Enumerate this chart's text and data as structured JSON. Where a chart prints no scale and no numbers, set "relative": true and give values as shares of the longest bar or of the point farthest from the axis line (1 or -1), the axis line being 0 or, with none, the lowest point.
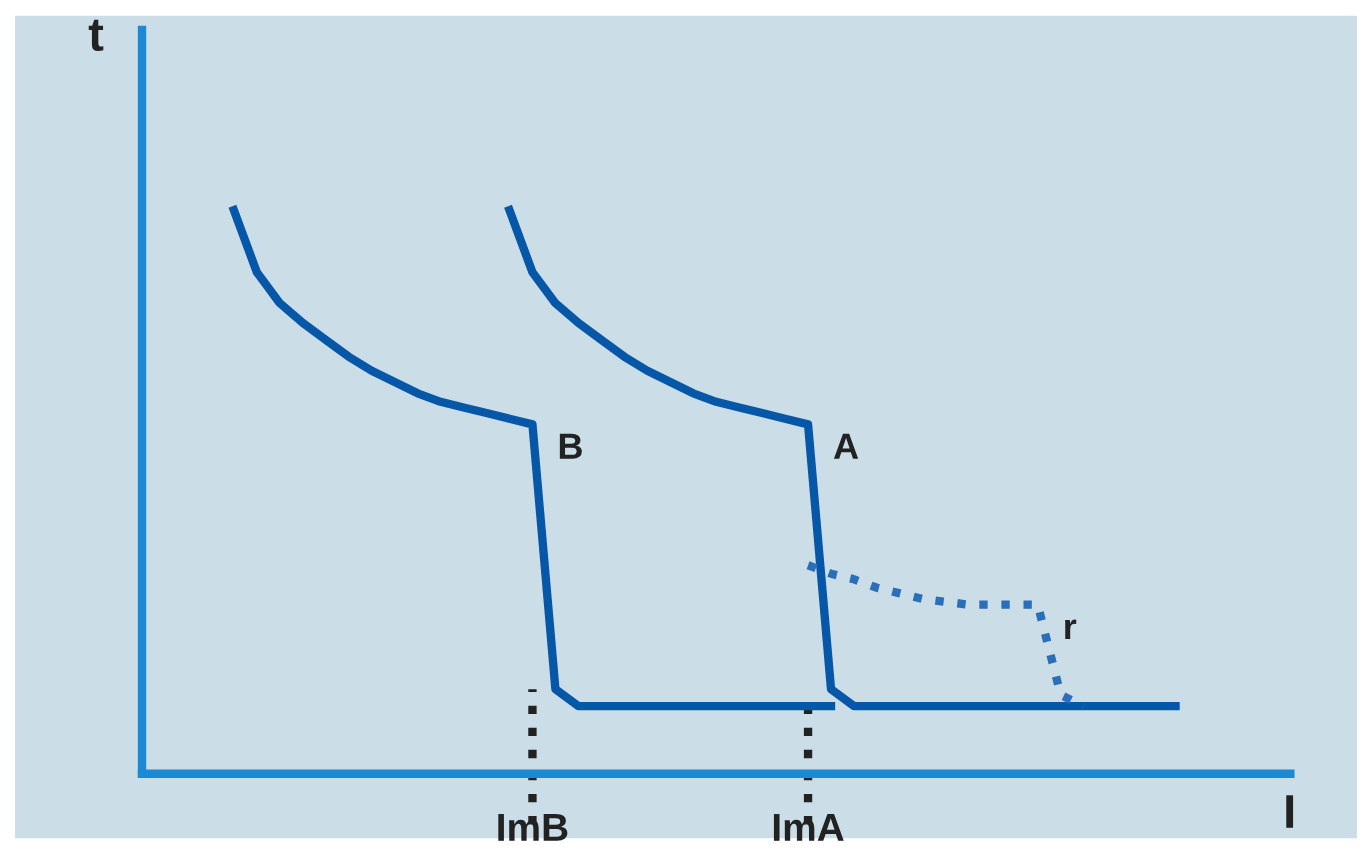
{
  "chart_data": {
    "type": "line",
    "relative": true,
    "xlabel": "I",
    "ylabel": "t",
    "tick_labels": "x",
    "categories": [
      null,
      null,
      null,
      null,
      null,
      null,
      null,
      null,
      null,
      null,
      null,
      null,
      null,
      null,
      null,
      null,
      null,
      "ImB",
      null,
      null,
      null,
      null,
      null,
      null,
      null,
      null,
      null,
      null,
      null,
      "ImA",
      null,
      null,
      null,
      null,
      null,
      null,
      null,
      null,
      null,
      null,
      null,
      null,
      null,
      null,
      null,
      null,
      null,
      null,
      null,
      null,
      null
    ],
    "series": [
      {
        "name": "B",
        "color": "#0757a8",
        "line_style": "solid",
        "values": [
          null,
          null,
          null,
          null,
          1.0,
          0.89,
          0.835,
          0.8,
          0.77,
          0.74,
          0.715,
          0.695,
          0.675,
          0.66,
          0.65,
          0.64,
          0.63,
          0.62,
          0.15,
          0.12,
          0.12,
          0.12,
          0.12,
          0.12,
          0.12,
          0.12,
          0.12,
          0.12,
          0.12,
          0.12,
          0.12,
          null,
          null,
          null,
          null,
          null,
          null,
          null,
          null,
          null,
          null,
          null,
          null,
          null,
          null,
          null,
          null,
          null,
          null,
          null,
          null
        ]
      },
      {
        "name": "A",
        "color": "#0757a8",
        "line_style": "solid",
        "values": [
          null,
          null,
          null,
          null,
          null,
          null,
          null,
          null,
          null,
          null,
          null,
          null,
          null,
          null,
          null,
          null,
          1.0,
          0.89,
          0.835,
          0.8,
          0.77,
          0.74,
          0.715,
          0.695,
          0.675,
          0.66,
          0.65,
          0.64,
          0.63,
          0.62,
          0.15,
          0.12,
          0.12,
          0.12,
          0.12,
          0.12,
          0.12,
          0.12,
          0.12,
          0.12,
          0.12,
          0.12,
          0.12,
          0.12,
          0.12,
          0.12,
          null,
          null,
          null,
          null,
          null
        ]
      },
      {
        "name": "r",
        "color": "#2a6fb8",
        "line_style": "dotted",
        "values": [
          null,
          null,
          null,
          null,
          null,
          null,
          null,
          null,
          null,
          null,
          null,
          null,
          null,
          null,
          null,
          null,
          null,
          null,
          null,
          null,
          null,
          null,
          null,
          null,
          null,
          null,
          null,
          null,
          null,
          0.37,
          0.355,
          0.345,
          0.33,
          0.32,
          0.31,
          0.305,
          0.3,
          0.3,
          0.3,
          0.3,
          0.14,
          0.12,
          null,
          null,
          null,
          null,
          null,
          null,
          null,
          null,
          null
        ]
      }
    ],
    "ref_lines": [
      {
        "axis": "x",
        "value": "ImB",
        "color": "#222222",
        "line_style": "dotted"
      },
      {
        "axis": "x",
        "value": "ImA",
        "color": "#222222",
        "line_style": "dotted"
      }
    ]
  }
}
